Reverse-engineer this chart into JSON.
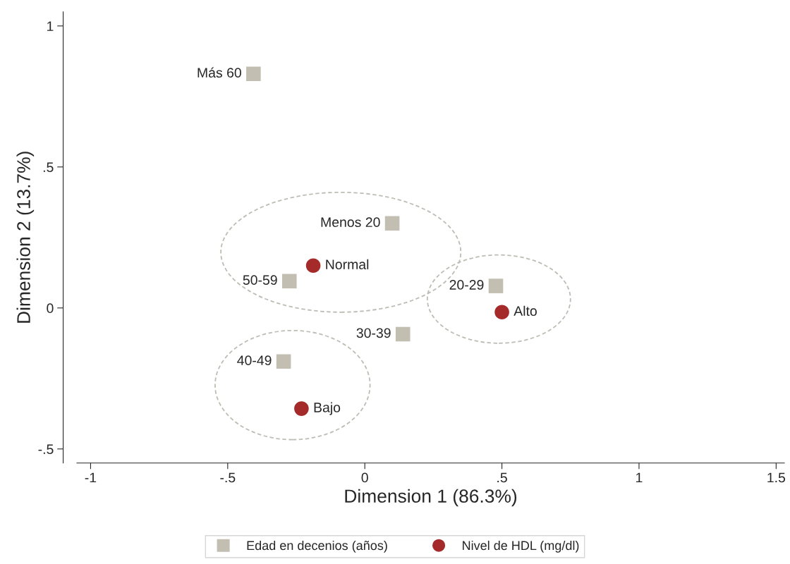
{
  "chart_data": {
    "type": "scatter",
    "xlabel": "Dimension 1 (86.3%)",
    "ylabel": "Dimension 2 (13.7%)",
    "series": [
      {
        "name": "Edad en decenios (años)",
        "color": "#c2bfb2",
        "marker": "square",
        "x": [
          -0.406,
          0.1,
          -0.275,
          0.139,
          0.478,
          -0.296
        ],
        "values": [
          0.83,
          0.3,
          0.095,
          -0.093,
          0.078,
          -0.19
        ]
      },
      {
        "name": "Nivel de HDL (mg/dl)",
        "color": "#a52a2a",
        "marker": "circle",
        "x": [
          -0.188,
          0.5,
          -0.231
        ],
        "values": [
          0.15,
          -0.015,
          -0.357
        ]
      }
    ],
    "annotations": [
      {
        "text": "Más 60",
        "x": -0.406,
        "y": 0.83
      },
      {
        "text": "Menos 20",
        "x": 0.1,
        "y": 0.3
      },
      {
        "text": "50-59",
        "x": -0.275,
        "y": 0.095
      },
      {
        "text": "30-39",
        "x": 0.139,
        "y": -0.093
      },
      {
        "text": "20-29",
        "x": 0.478,
        "y": 0.078
      },
      {
        "text": "40-49",
        "x": -0.296,
        "y": -0.19
      },
      {
        "text": "Normal",
        "x": -0.188,
        "y": 0.15
      },
      {
        "text": "Alto",
        "x": 0.5,
        "y": -0.015
      },
      {
        "text": "Bajo",
        "x": -0.231,
        "y": -0.357
      }
    ],
    "xlim": [
      -1.05,
      1.53
    ],
    "ylim": [
      -0.55,
      1.05
    ],
    "xticks": [
      {
        "value": -1,
        "label": "-1"
      },
      {
        "value": -0.5,
        "label": "-.5"
      },
      0,
      {
        "value": 0.5,
        "label": ".5"
      },
      1,
      {
        "value": 1.5,
        "label": "1.5"
      }
    ],
    "yticks": [
      {
        "value": -0.5,
        "label": "-.5"
      },
      0,
      {
        "value": 0.5,
        "label": ".5"
      },
      1
    ],
    "grid": false,
    "legend": "bottom"
  }
}
